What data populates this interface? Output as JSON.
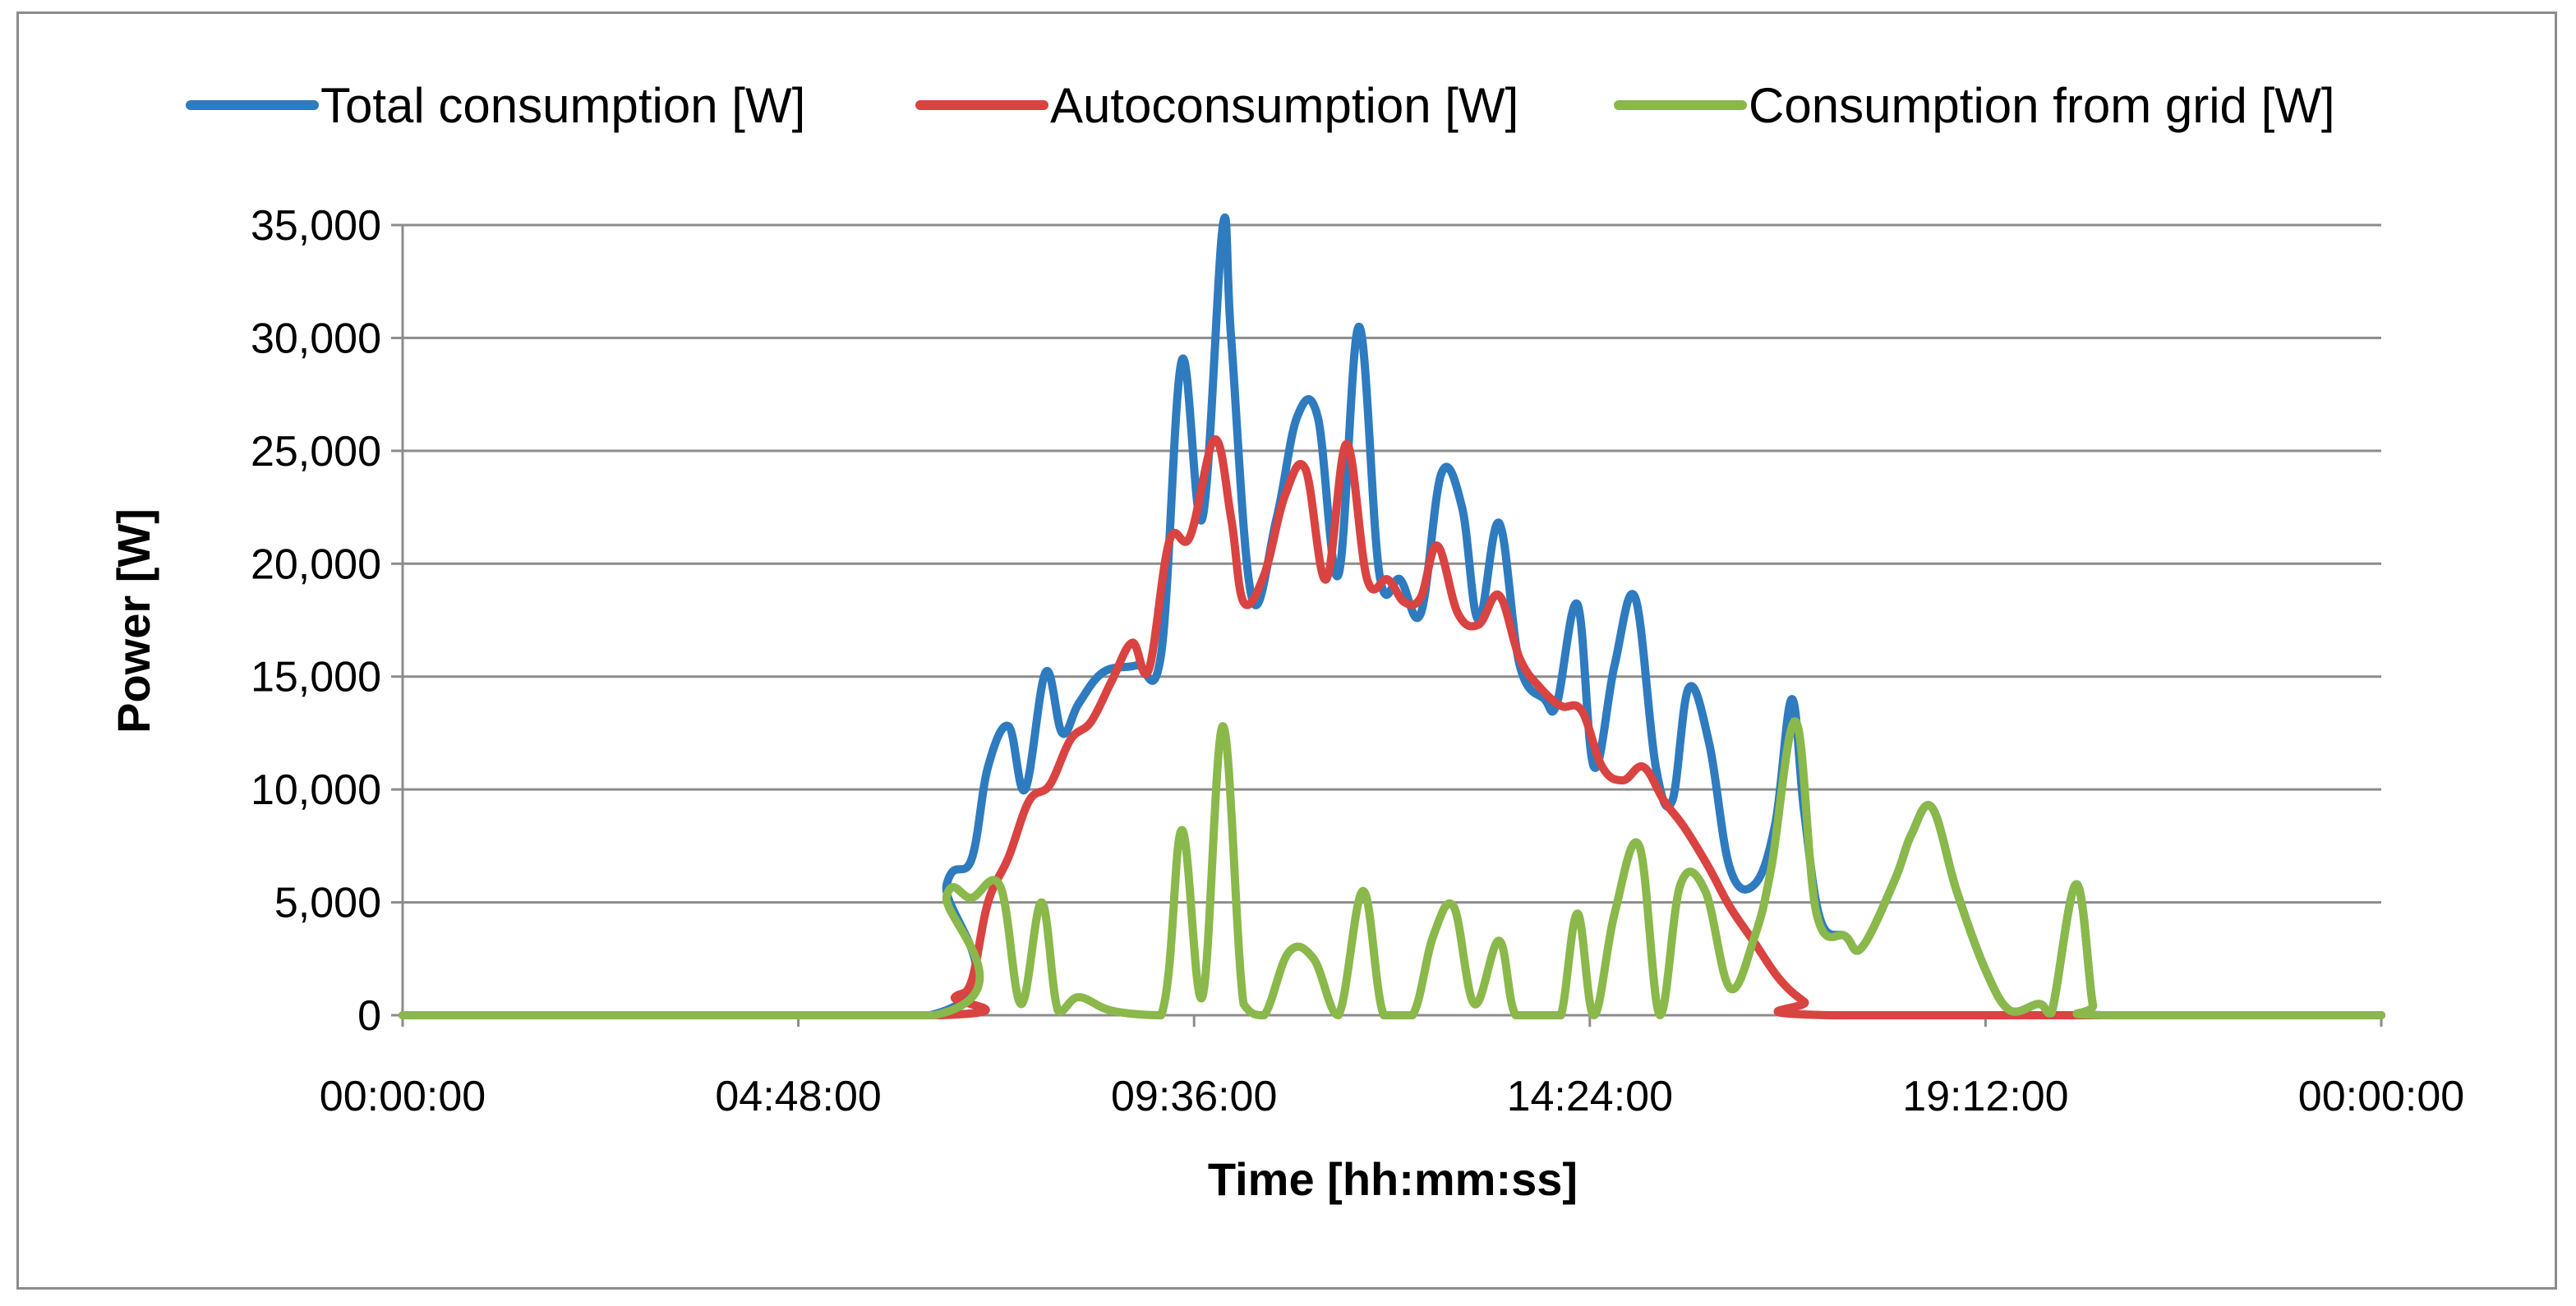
{
  "chart_data": {
    "type": "line",
    "title": "",
    "xlabel": "Time [hh:mm:ss]",
    "ylabel": "Power [W]",
    "xlim_hours": [
      0,
      24
    ],
    "ylim": [
      0,
      35000
    ],
    "grid": true,
    "legend": "top",
    "x_ticks": [
      {
        "hours": 0,
        "label": "00:00:00"
      },
      {
        "hours": 4.8,
        "label": "04:48:00"
      },
      {
        "hours": 9.6,
        "label": "09:36:00"
      },
      {
        "hours": 14.4,
        "label": "14:24:00"
      },
      {
        "hours": 19.2,
        "label": "19:12:00"
      },
      {
        "hours": 24,
        "label": "00:00:00"
      }
    ],
    "y_ticks": [
      {
        "value": 0,
        "label": "0"
      },
      {
        "value": 5000,
        "label": "5,000"
      },
      {
        "value": 10000,
        "label": "10,000"
      },
      {
        "value": 15000,
        "label": "15,000"
      },
      {
        "value": 20000,
        "label": "20,000"
      },
      {
        "value": 25000,
        "label": "25,000"
      },
      {
        "value": 30000,
        "label": "30,000"
      },
      {
        "value": 35000,
        "label": "35,000"
      }
    ],
    "series": [
      {
        "name": "Total consumption [W]",
        "color": "#2e7bbf",
        "points": [
          [
            0,
            0
          ],
          [
            6.4,
            0
          ],
          [
            6.6,
            5800
          ],
          [
            6.9,
            6900
          ],
          [
            7.1,
            11000
          ],
          [
            7.35,
            12800
          ],
          [
            7.55,
            10000
          ],
          [
            7.8,
            15200
          ],
          [
            8.0,
            12500
          ],
          [
            8.2,
            13800
          ],
          [
            8.5,
            15200
          ],
          [
            8.9,
            15500
          ],
          [
            9.2,
            16000
          ],
          [
            9.45,
            29000
          ],
          [
            9.7,
            22000
          ],
          [
            9.95,
            35000
          ],
          [
            10.05,
            30000
          ],
          [
            10.3,
            18500
          ],
          [
            10.6,
            22000
          ],
          [
            10.85,
            26500
          ],
          [
            11.1,
            26500
          ],
          [
            11.35,
            19500
          ],
          [
            11.6,
            30500
          ],
          [
            11.85,
            19500
          ],
          [
            12.1,
            19300
          ],
          [
            12.35,
            17800
          ],
          [
            12.6,
            24000
          ],
          [
            12.85,
            22500
          ],
          [
            13.05,
            17500
          ],
          [
            13.3,
            21800
          ],
          [
            13.55,
            15500
          ],
          [
            13.85,
            14000
          ],
          [
            14.0,
            13800
          ],
          [
            14.25,
            18200
          ],
          [
            14.45,
            11000
          ],
          [
            14.7,
            15500
          ],
          [
            14.95,
            18500
          ],
          [
            15.2,
            11000
          ],
          [
            15.4,
            9500
          ],
          [
            15.6,
            14500
          ],
          [
            15.85,
            12000
          ],
          [
            16.1,
            6500
          ],
          [
            16.4,
            5800
          ],
          [
            16.65,
            8500
          ],
          [
            16.85,
            14000
          ],
          [
            17.0,
            9000
          ],
          [
            17.2,
            4200
          ],
          [
            17.5,
            3500
          ],
          [
            17.7,
            3000
          ],
          [
            18.1,
            6000
          ],
          [
            18.3,
            8000
          ],
          [
            18.55,
            9200
          ],
          [
            18.85,
            5500
          ],
          [
            19.2,
            2000
          ],
          [
            19.5,
            200
          ],
          [
            19.85,
            500
          ],
          [
            20.0,
            100
          ],
          [
            20.3,
            5800
          ],
          [
            20.5,
            500
          ],
          [
            20.6,
            0
          ],
          [
            24,
            0
          ]
        ]
      },
      {
        "name": "Autoconsumption [W]",
        "color": "#d94341",
        "points": [
          [
            0,
            0
          ],
          [
            6.5,
            0
          ],
          [
            6.7,
            800
          ],
          [
            6.9,
            1500
          ],
          [
            7.1,
            5000
          ],
          [
            7.35,
            7000
          ],
          [
            7.6,
            9500
          ],
          [
            7.85,
            10200
          ],
          [
            8.1,
            12200
          ],
          [
            8.35,
            13000
          ],
          [
            8.6,
            14800
          ],
          [
            8.85,
            16500
          ],
          [
            9.05,
            15300
          ],
          [
            9.3,
            21000
          ],
          [
            9.55,
            21200
          ],
          [
            9.85,
            25500
          ],
          [
            10.05,
            22000
          ],
          [
            10.2,
            18300
          ],
          [
            10.45,
            19500
          ],
          [
            10.7,
            23000
          ],
          [
            10.95,
            24200
          ],
          [
            11.2,
            19300
          ],
          [
            11.45,
            25300
          ],
          [
            11.7,
            19300
          ],
          [
            11.95,
            19300
          ],
          [
            12.15,
            18300
          ],
          [
            12.35,
            18500
          ],
          [
            12.55,
            20800
          ],
          [
            12.8,
            17800
          ],
          [
            13.05,
            17300
          ],
          [
            13.3,
            18600
          ],
          [
            13.55,
            15800
          ],
          [
            13.8,
            14500
          ],
          [
            14.05,
            13700
          ],
          [
            14.3,
            13500
          ],
          [
            14.55,
            11000
          ],
          [
            14.8,
            10400
          ],
          [
            15.05,
            11000
          ],
          [
            15.3,
            9500
          ],
          [
            15.55,
            8300
          ],
          [
            15.85,
            6500
          ],
          [
            16.1,
            4800
          ],
          [
            16.4,
            3200
          ],
          [
            16.7,
            1600
          ],
          [
            17.0,
            600
          ],
          [
            17.3,
            0
          ],
          [
            24,
            0
          ]
        ]
      },
      {
        "name": "Consumption from grid [W]",
        "color": "#8ab84a",
        "points": [
          [
            0,
            0
          ],
          [
            6.45,
            0
          ],
          [
            6.6,
            5300
          ],
          [
            6.9,
            5200
          ],
          [
            7.25,
            5700
          ],
          [
            7.5,
            500
          ],
          [
            7.75,
            5000
          ],
          [
            7.95,
            200
          ],
          [
            8.2,
            800
          ],
          [
            8.6,
            200
          ],
          [
            9.2,
            0
          ],
          [
            9.45,
            8200
          ],
          [
            9.7,
            800
          ],
          [
            9.95,
            12800
          ],
          [
            10.2,
            500
          ],
          [
            10.45,
            0
          ],
          [
            10.75,
            2800
          ],
          [
            11.05,
            2500
          ],
          [
            11.35,
            0
          ],
          [
            11.65,
            5500
          ],
          [
            11.9,
            0
          ],
          [
            12.25,
            0
          ],
          [
            12.5,
            3500
          ],
          [
            12.75,
            4800
          ],
          [
            13.0,
            500
          ],
          [
            13.3,
            3300
          ],
          [
            13.5,
            0
          ],
          [
            13.85,
            0
          ],
          [
            14.05,
            0
          ],
          [
            14.25,
            4500
          ],
          [
            14.45,
            0
          ],
          [
            14.7,
            4500
          ],
          [
            15.0,
            7500
          ],
          [
            15.25,
            0
          ],
          [
            15.5,
            5800
          ],
          [
            15.8,
            5500
          ],
          [
            16.1,
            1200
          ],
          [
            16.4,
            3500
          ],
          [
            16.6,
            6500
          ],
          [
            16.9,
            13000
          ],
          [
            17.15,
            4500
          ],
          [
            17.5,
            3500
          ],
          [
            17.7,
            3000
          ],
          [
            18.1,
            6000
          ],
          [
            18.3,
            8000
          ],
          [
            18.55,
            9200
          ],
          [
            18.85,
            5500
          ],
          [
            19.2,
            2000
          ],
          [
            19.5,
            200
          ],
          [
            19.85,
            500
          ],
          [
            20.0,
            100
          ],
          [
            20.3,
            5800
          ],
          [
            20.5,
            500
          ],
          [
            20.6,
            0
          ],
          [
            24,
            0
          ]
        ]
      }
    ]
  }
}
